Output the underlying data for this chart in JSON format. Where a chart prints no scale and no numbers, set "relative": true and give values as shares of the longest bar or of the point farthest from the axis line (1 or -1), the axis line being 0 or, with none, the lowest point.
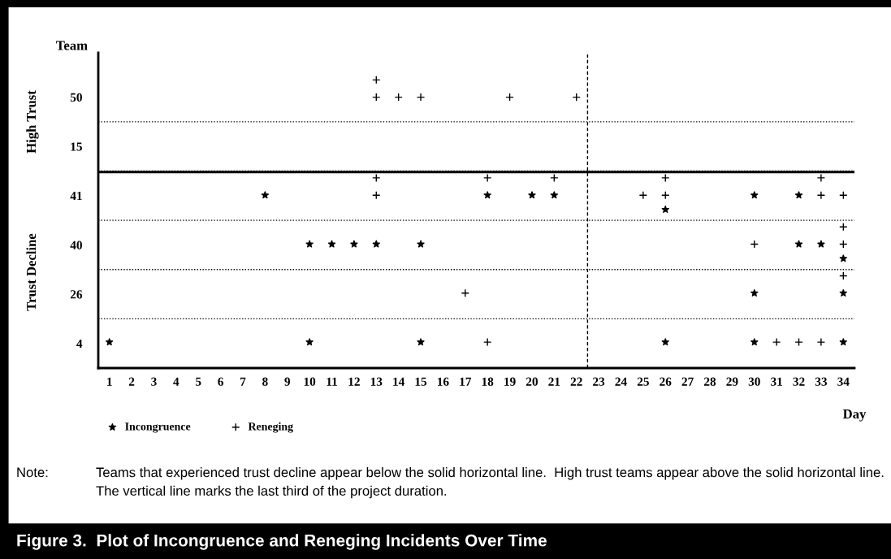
{
  "chart_data": {
    "type": "scatter",
    "title": "Figure 3.  Plot of Incongruence and Reneging Incidents Over Time",
    "xlabel": "Day",
    "ylabel": "Team",
    "xlim": [
      0.5,
      34.5
    ],
    "xticks": [
      1,
      2,
      3,
      4,
      5,
      6,
      7,
      8,
      9,
      10,
      11,
      12,
      13,
      14,
      15,
      16,
      17,
      18,
      19,
      20,
      21,
      22,
      23,
      24,
      25,
      26,
      27,
      28,
      29,
      30,
      31,
      32,
      33,
      34
    ],
    "y_categories": [
      "50",
      "15",
      "41",
      "40",
      "26",
      "4"
    ],
    "relative": true,
    "series": [
      {
        "name": "Incongruence",
        "color": "#000000",
        "marker": "star",
        "x": [
          1,
          10,
          15,
          26,
          30,
          34,
          30,
          34,
          10,
          11,
          12,
          13,
          15,
          32,
          33,
          34,
          8,
          18,
          20,
          21,
          30,
          32,
          26
        ],
        "values": [
          0.09,
          0.09,
          0.09,
          0.09,
          0.09,
          0.09,
          0.26,
          0.26,
          0.43,
          0.43,
          0.43,
          0.43,
          0.43,
          0.43,
          0.43,
          0.38,
          0.6,
          0.6,
          0.6,
          0.6,
          0.6,
          0.6,
          0.55
        ]
      },
      {
        "name": "Reneging",
        "color": "#000000",
        "marker": "cross",
        "x": [
          18,
          31,
          32,
          33,
          17,
          34,
          30,
          34,
          34,
          13,
          13,
          18,
          21,
          25,
          26,
          26,
          33,
          33,
          34,
          13,
          13,
          14,
          15,
          19,
          22
        ],
        "values": [
          0.09,
          0.09,
          0.09,
          0.09,
          0.26,
          0.32,
          0.43,
          0.43,
          0.49,
          0.6,
          0.66,
          0.66,
          0.66,
          0.6,
          0.6,
          0.66,
          0.66,
          0.6,
          0.6,
          0.94,
          1,
          0.94,
          0.94,
          0.94,
          0.94
        ]
      }
    ],
    "ref_lines": [
      {
        "axis": "y",
        "value": 0.68,
        "line_style": "solid",
        "color": "#000000"
      },
      {
        "axis": "x",
        "value": 22.5,
        "line_style": "dashed",
        "color": "#000000"
      }
    ],
    "annotations": [
      "High Trust",
      "Trust Decline",
      "Note:",
      "Teams that experienced trust decline appear below the solid horizontal line.  High trust teams appear above the solid horizontal line.  The vertical line marks the last third of the project duration."
    ],
    "legend": "bottom left",
    "grid": "y"
  }
}
